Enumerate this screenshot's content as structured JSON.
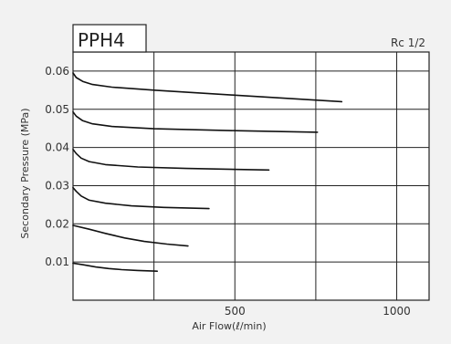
{
  "chart_data": {
    "type": "line",
    "title": "PPH4",
    "subtitle": "Rc 1/2",
    "xlabel": "Air Flow(ℓ/min)",
    "ylabel": "Secondary Pressure (MPa)",
    "xlim": [
      0,
      1100
    ],
    "ylim": [
      0,
      0.065
    ],
    "xticks": [
      {
        "value": 500,
        "label": "500"
      },
      {
        "value": 1000,
        "label": "1000"
      }
    ],
    "yticks": [
      {
        "value": 0.01,
        "label": "0.01"
      },
      {
        "value": 0.02,
        "label": "0.02"
      },
      {
        "value": 0.03,
        "label": "0.03"
      },
      {
        "value": 0.04,
        "label": "0.04"
      },
      {
        "value": 0.05,
        "label": "0.05"
      },
      {
        "value": 0.06,
        "label": "0.06"
      }
    ],
    "vgrid": [
      250,
      500,
      750,
      1000
    ],
    "grid": true,
    "line_color": "#111111",
    "series": [
      {
        "points": [
          [
            0,
            0.0097
          ],
          [
            30,
            0.0093
          ],
          [
            70,
            0.0087
          ],
          [
            110,
            0.0083
          ],
          [
            150,
            0.008
          ],
          [
            200,
            0.0078
          ],
          [
            260,
            0.0076
          ]
        ]
      },
      {
        "points": [
          [
            0,
            0.0196
          ],
          [
            50,
            0.0186
          ],
          [
            100,
            0.0175
          ],
          [
            160,
            0.0163
          ],
          [
            220,
            0.0154
          ],
          [
            290,
            0.0147
          ],
          [
            355,
            0.0142
          ]
        ]
      },
      {
        "points": [
          [
            0,
            0.0295
          ],
          [
            10,
            0.0285
          ],
          [
            25,
            0.0273
          ],
          [
            50,
            0.0262
          ],
          [
            100,
            0.0254
          ],
          [
            180,
            0.0247
          ],
          [
            280,
            0.0243
          ],
          [
            420,
            0.024
          ]
        ]
      },
      {
        "points": [
          [
            0,
            0.0395
          ],
          [
            10,
            0.0384
          ],
          [
            25,
            0.0372
          ],
          [
            50,
            0.0363
          ],
          [
            100,
            0.0355
          ],
          [
            200,
            0.0349
          ],
          [
            350,
            0.0345
          ],
          [
            605,
            0.0341
          ]
        ]
      },
      {
        "points": [
          [
            0,
            0.0493
          ],
          [
            10,
            0.0482
          ],
          [
            30,
            0.047
          ],
          [
            60,
            0.0462
          ],
          [
            120,
            0.0455
          ],
          [
            250,
            0.0449
          ],
          [
            500,
            0.0444
          ],
          [
            755,
            0.044
          ]
        ]
      },
      {
        "points": [
          [
            0,
            0.0595
          ],
          [
            10,
            0.0583
          ],
          [
            30,
            0.0573
          ],
          [
            60,
            0.0565
          ],
          [
            120,
            0.0558
          ],
          [
            250,
            0.055
          ],
          [
            500,
            0.0537
          ],
          [
            830,
            0.052
          ]
        ]
      }
    ]
  }
}
